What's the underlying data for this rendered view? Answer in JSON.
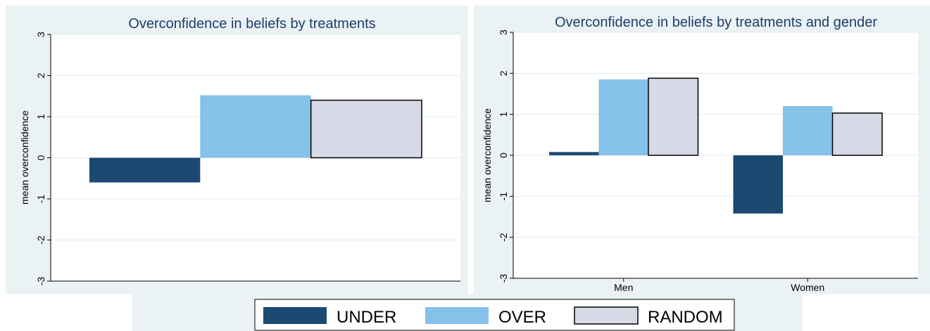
{
  "colors": {
    "UNDER": "#1a4a72",
    "OVER": "#85c1e9",
    "RANDOM": "#d5dae6",
    "title": "#1f3b6e",
    "panel_bg": "#eaf2f3",
    "plot_bg": "#ffffff",
    "grid": "#e3eced"
  },
  "legend": {
    "items": [
      {
        "label": "UNDER",
        "color": "#1a4a72"
      },
      {
        "label": "OVER",
        "color": "#85c1e9"
      },
      {
        "label": "RANDOM",
        "color": "#d5dae6"
      }
    ]
  },
  "chart_data": [
    {
      "type": "bar",
      "title": "Overconfidence in beliefs by treatments",
      "xlabel": "",
      "ylabel": "mean overconfidence",
      "ylim": [
        -3,
        3
      ],
      "yticks": [
        -3,
        -2,
        -1,
        0,
        1,
        2,
        3
      ],
      "grid": true,
      "categories": [
        ""
      ],
      "series": [
        {
          "name": "UNDER",
          "values": [
            -0.6
          ]
        },
        {
          "name": "OVER",
          "values": [
            1.52
          ]
        },
        {
          "name": "RANDOM",
          "values": [
            1.4
          ]
        }
      ]
    },
    {
      "type": "bar",
      "title": "Overconfidence in beliefs by treatments and gender",
      "xlabel": "",
      "ylabel": "mean overconfidence",
      "ylim": [
        -3,
        3
      ],
      "yticks": [
        -3,
        -2,
        -1,
        0,
        1,
        2,
        3
      ],
      "grid": true,
      "categories": [
        "Men",
        "Women"
      ],
      "series": [
        {
          "name": "UNDER",
          "values": [
            0.08,
            -1.42
          ]
        },
        {
          "name": "OVER",
          "values": [
            1.85,
            1.2
          ]
        },
        {
          "name": "RANDOM",
          "values": [
            1.88,
            1.03
          ]
        }
      ]
    }
  ]
}
